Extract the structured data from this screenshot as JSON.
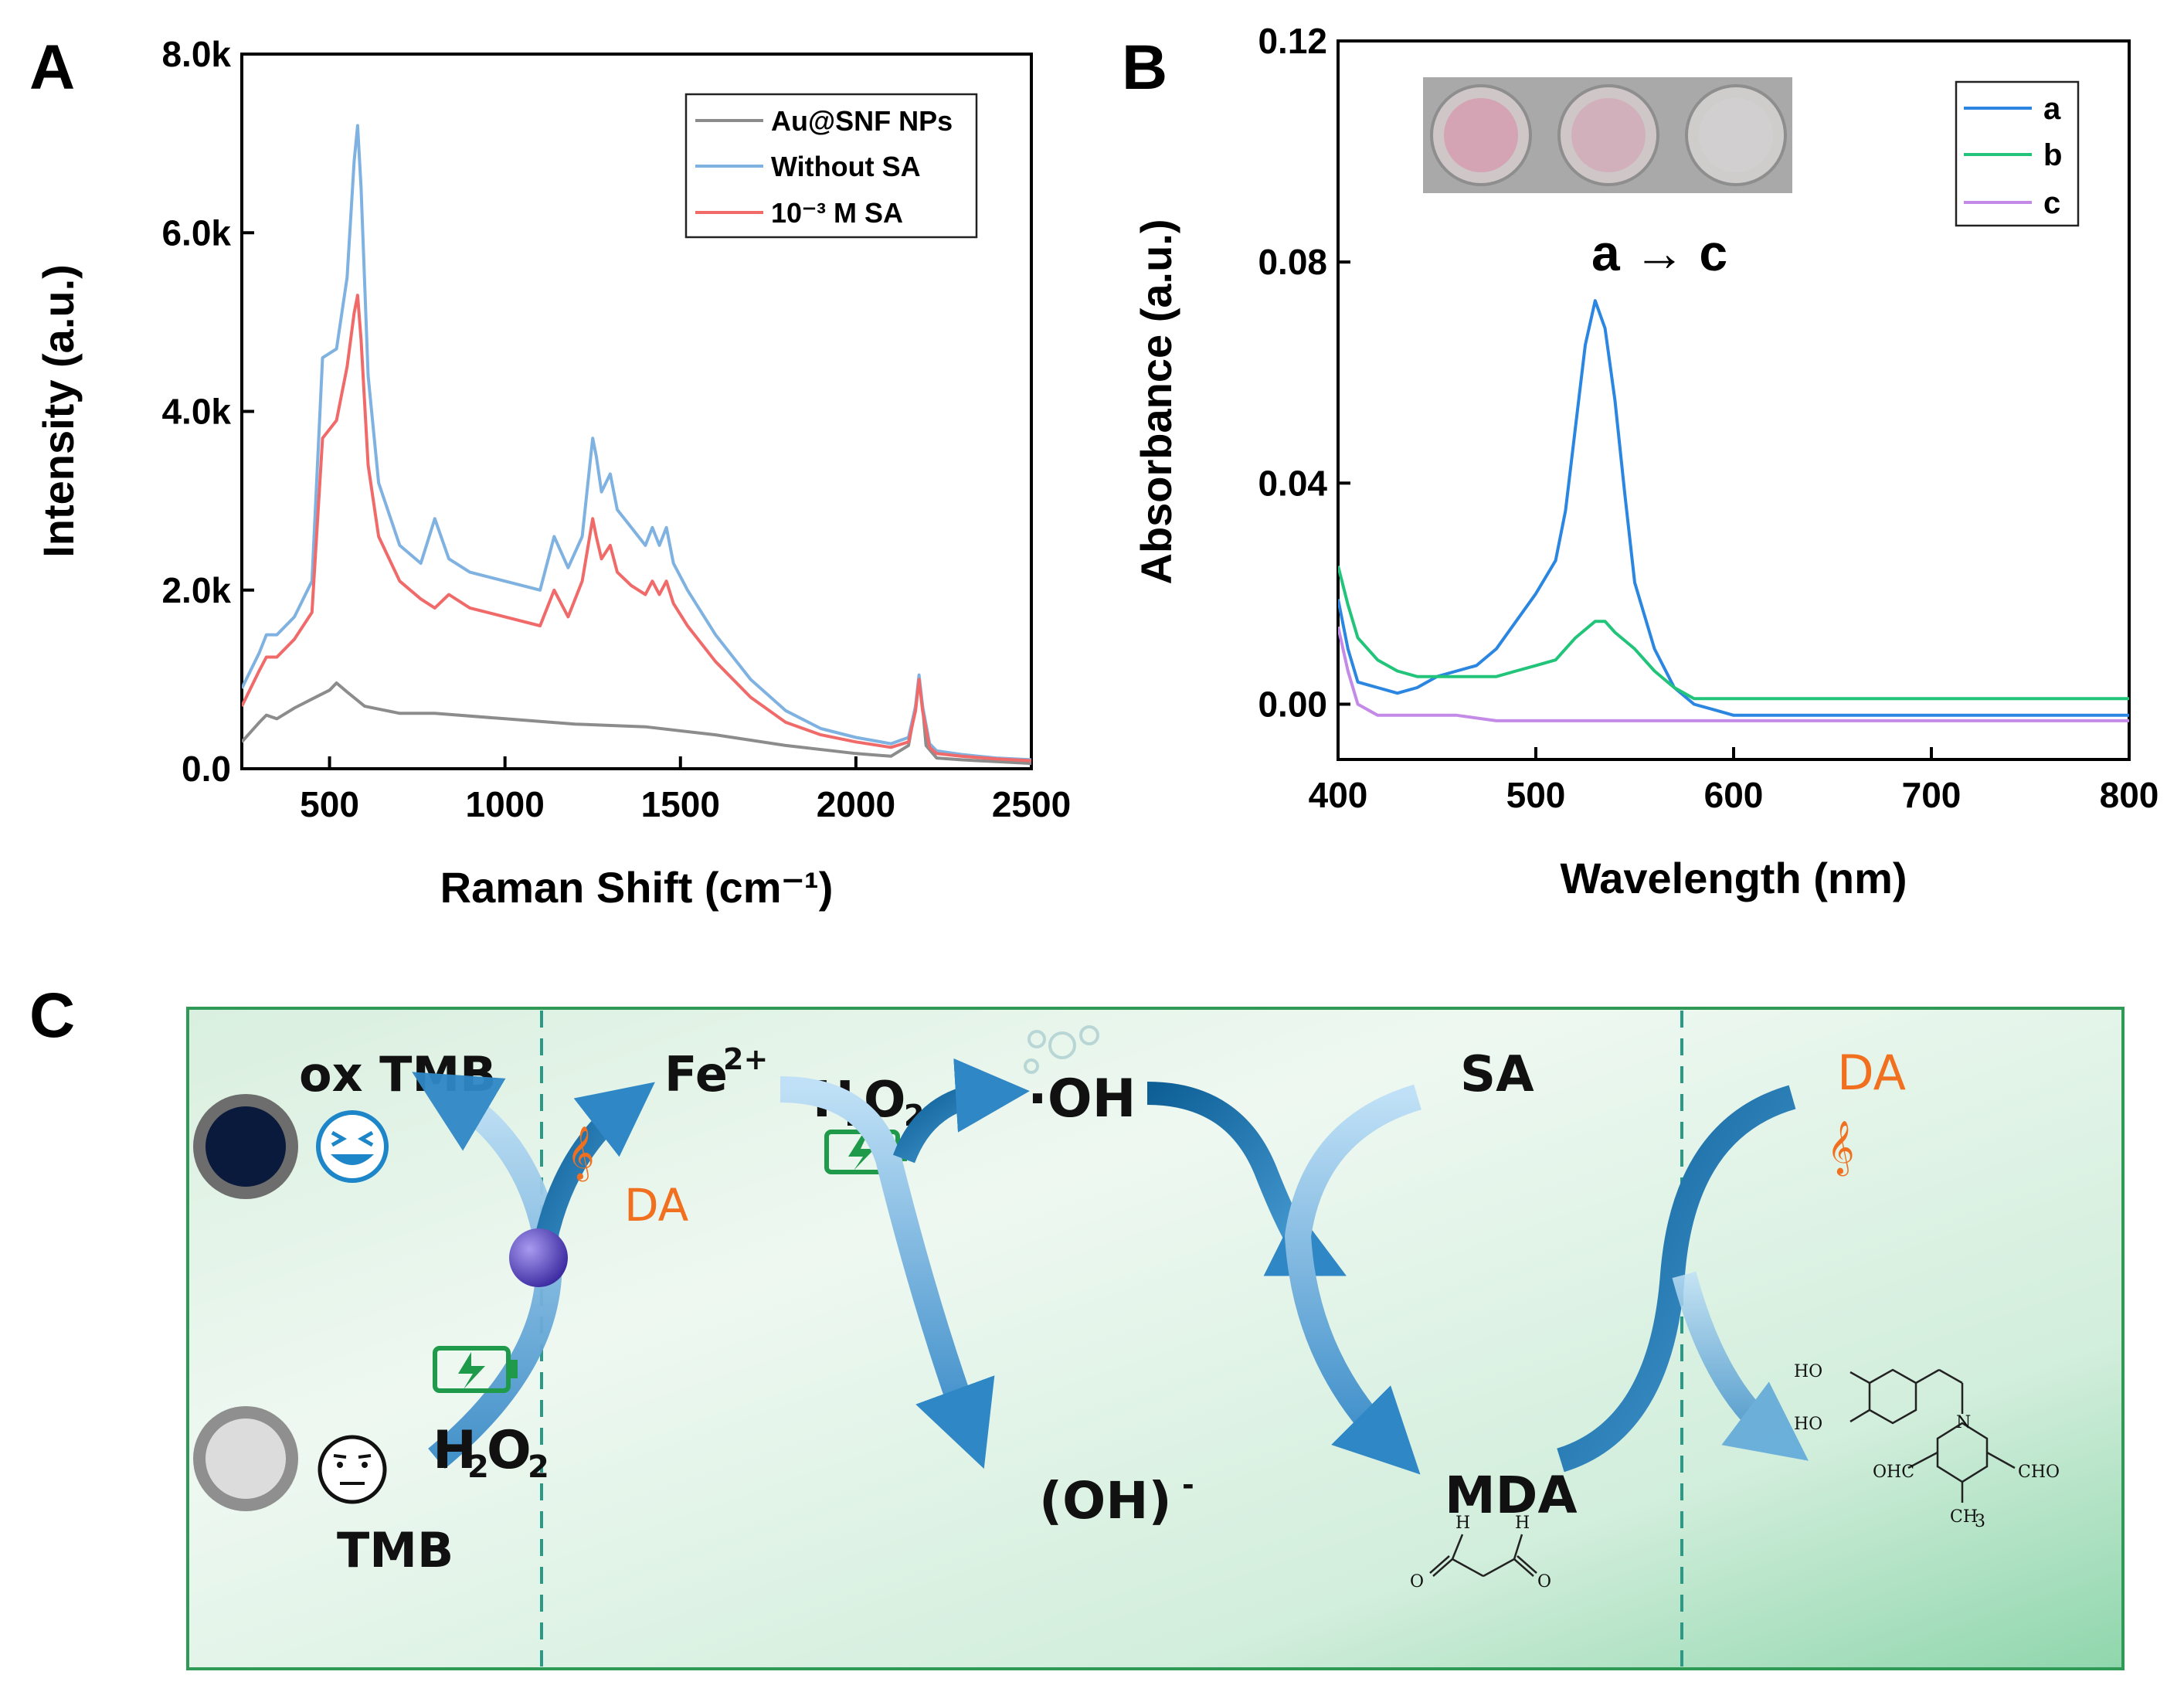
{
  "panels": {
    "a": "A",
    "b": "B",
    "c": "C"
  },
  "colors": {
    "gray": "#8c8c8c",
    "blue": "#7fb2e0",
    "red": "#f06a6a",
    "lineA": "#2a86e0",
    "lineB": "#22c47a",
    "lineC": "#c48ae8"
  },
  "chart_data": [
    {
      "type": "line",
      "title": "",
      "xlabel": "Raman Shift (cm⁻¹)",
      "ylabel": "Intensity (a.u.)",
      "xlim": [
        250,
        2500
      ],
      "ylim": [
        0,
        8000
      ],
      "xticks": [
        500,
        1000,
        1500,
        2000,
        2500
      ],
      "xtick_labels": [
        "500",
        "1000",
        "1500",
        "2000",
        "2500"
      ],
      "yticks": [
        0,
        2000,
        4000,
        6000,
        8000
      ],
      "ytick_labels": [
        "0.0",
        "2.0k",
        "4.0k",
        "6.0k",
        "8.0k"
      ],
      "legend_placement": "top-right",
      "series": [
        {
          "name": "Au@SNF NPs",
          "color": "#8c8c8c",
          "x": [
            250,
            300,
            320,
            350,
            400,
            450,
            500,
            520,
            550,
            600,
            650,
            700,
            800,
            1000,
            1200,
            1400,
            1600,
            1800,
            2000,
            2100,
            2150,
            2170,
            2180,
            2190,
            2200,
            2230,
            2300,
            2400,
            2500
          ],
          "y": [
            300,
            520,
            600,
            560,
            680,
            780,
            880,
            960,
            860,
            700,
            660,
            620,
            620,
            560,
            500,
            470,
            380,
            260,
            170,
            140,
            260,
            700,
            1000,
            700,
            260,
            120,
            100,
            80,
            60
          ]
        },
        {
          "name": "Without SA",
          "color": "#7fb2e0",
          "x": [
            250,
            300,
            320,
            350,
            400,
            450,
            480,
            520,
            550,
            570,
            580,
            590,
            610,
            640,
            700,
            760,
            800,
            840,
            900,
            1000,
            1100,
            1140,
            1180,
            1220,
            1250,
            1260,
            1275,
            1300,
            1320,
            1360,
            1400,
            1420,
            1440,
            1460,
            1480,
            1520,
            1600,
            1700,
            1800,
            1900,
            2000,
            2100,
            2150,
            2170,
            2180,
            2190,
            2210,
            2230,
            2300,
            2400,
            2500
          ],
          "y": [
            900,
            1300,
            1500,
            1500,
            1700,
            2100,
            4600,
            4700,
            5500,
            6800,
            7200,
            6500,
            4400,
            3200,
            2500,
            2300,
            2800,
            2350,
            2200,
            2100,
            2000,
            2600,
            2250,
            2600,
            3700,
            3500,
            3100,
            3300,
            2900,
            2700,
            2500,
            2700,
            2500,
            2700,
            2300,
            2000,
            1500,
            1000,
            650,
            450,
            350,
            280,
            350,
            700,
            1050,
            700,
            280,
            200,
            160,
            120,
            100
          ]
        },
        {
          "name": "10⁻³ M SA",
          "color": "#f06a6a",
          "x": [
            250,
            300,
            320,
            350,
            400,
            450,
            480,
            520,
            550,
            570,
            580,
            590,
            610,
            640,
            700,
            760,
            800,
            840,
            900,
            1000,
            1100,
            1140,
            1180,
            1220,
            1250,
            1260,
            1275,
            1300,
            1320,
            1360,
            1400,
            1420,
            1440,
            1460,
            1480,
            1520,
            1600,
            1700,
            1800,
            1900,
            2000,
            2100,
            2150,
            2170,
            2180,
            2190,
            2210,
            2230,
            2300,
            2400,
            2500
          ],
          "y": [
            700,
            1100,
            1250,
            1250,
            1450,
            1750,
            3700,
            3900,
            4500,
            5100,
            5300,
            4800,
            3400,
            2600,
            2100,
            1900,
            1800,
            1950,
            1800,
            1700,
            1600,
            2000,
            1700,
            2100,
            2800,
            2600,
            2350,
            2500,
            2200,
            2050,
            1950,
            2100,
            1950,
            2100,
            1850,
            1600,
            1200,
            800,
            520,
            380,
            300,
            240,
            300,
            650,
            1000,
            650,
            240,
            170,
            140,
            110,
            90
          ]
        }
      ]
    },
    {
      "type": "line",
      "title": "",
      "xlabel": "Wavelength (nm)",
      "ylabel": "Absorbance (a.u.)",
      "xlim": [
        400,
        800
      ],
      "ylim": [
        -0.01,
        0.12
      ],
      "xticks": [
        400,
        500,
        600,
        700,
        800
      ],
      "xtick_labels": [
        "400",
        "500",
        "600",
        "700",
        "800"
      ],
      "yticks": [
        0,
        0.04,
        0.08,
        0.12
      ],
      "ytick_labels": [
        "0.00",
        "0.04",
        "0.08",
        "0.12"
      ],
      "legend_placement": "top-right",
      "annotation": "a → c",
      "series": [
        {
          "name": "a",
          "color": "#2a86e0",
          "x": [
            400,
            405,
            410,
            420,
            430,
            440,
            450,
            460,
            470,
            480,
            490,
            500,
            510,
            515,
            520,
            525,
            530,
            535,
            540,
            545,
            550,
            560,
            570,
            580,
            590,
            600,
            650,
            700,
            750,
            800
          ],
          "y": [
            0.019,
            0.01,
            0.004,
            0.003,
            0.002,
            0.003,
            0.005,
            0.006,
            0.007,
            0.01,
            0.015,
            0.02,
            0.026,
            0.035,
            0.05,
            0.065,
            0.073,
            0.068,
            0.055,
            0.038,
            0.022,
            0.01,
            0.003,
            0.0,
            -0.001,
            -0.002,
            -0.002,
            -0.002,
            -0.002,
            -0.002
          ]
        },
        {
          "name": "b",
          "color": "#22c47a",
          "x": [
            400,
            405,
            410,
            420,
            430,
            440,
            450,
            460,
            470,
            480,
            490,
            500,
            510,
            520,
            530,
            535,
            540,
            550,
            560,
            570,
            580,
            600,
            650,
            700,
            750,
            800
          ],
          "y": [
            0.025,
            0.018,
            0.012,
            0.008,
            0.006,
            0.005,
            0.005,
            0.005,
            0.005,
            0.005,
            0.006,
            0.007,
            0.008,
            0.012,
            0.015,
            0.015,
            0.013,
            0.01,
            0.006,
            0.003,
            0.001,
            0.001,
            0.001,
            0.001,
            0.001,
            0.001
          ]
        },
        {
          "name": "c",
          "color": "#c48ae8",
          "x": [
            400,
            405,
            410,
            420,
            430,
            440,
            450,
            460,
            480,
            500,
            550,
            600,
            650,
            700,
            750,
            800
          ],
          "y": [
            0.014,
            0.006,
            0.0,
            -0.002,
            -0.002,
            -0.002,
            -0.002,
            -0.002,
            -0.003,
            -0.003,
            -0.003,
            -0.003,
            -0.003,
            -0.003,
            -0.003,
            -0.003
          ]
        }
      ]
    }
  ],
  "scheme": {
    "ox_tmb": "ox TMB",
    "tmb": "TMB",
    "fe": "Fe",
    "fe_sup": "2+",
    "h2o2_h": "H",
    "h2o2_2a": "2",
    "h2o2_o": "O",
    "h2o2_2b": "2",
    "oh_radical": "·OH",
    "sa": "SA",
    "da_left": "DA",
    "da_right": "DA",
    "hydroxide": "(OH)",
    "hydroxide_sup": "-",
    "mda": "MDA",
    "chem_ho1": "HO",
    "chem_ho2": "HO",
    "chem_ohc": "OHC",
    "chem_cho": "CHO",
    "chem_ch3": "CH",
    "chem_ch3_sub": "3",
    "chem_n": "N",
    "chem_h1": "H",
    "chem_h2": "H",
    "chem_o1": "O",
    "chem_o2": "O"
  }
}
